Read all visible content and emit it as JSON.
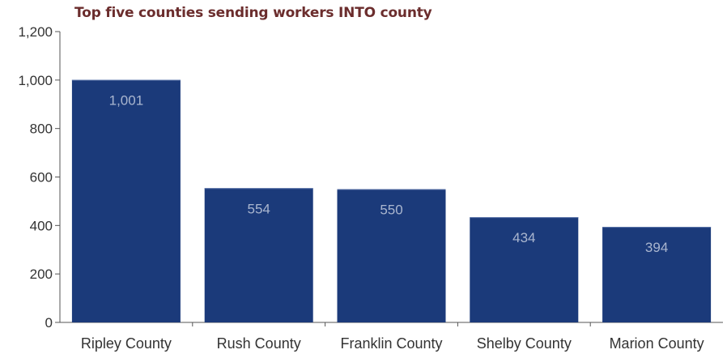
{
  "colors": {
    "bar": "#1b3a7a",
    "bar_label": "#aab6cf",
    "title": "#6b2d2d",
    "axis": "#555555",
    "text": "#333333"
  },
  "chart_data": {
    "type": "bar",
    "title": "Top five counties sending workers INTO county",
    "xlabel": "",
    "ylabel": "",
    "categories": [
      "Ripley County",
      "Rush County",
      "Franklin County",
      "Shelby County",
      "Marion County"
    ],
    "values": [
      1001,
      554,
      550,
      434,
      394
    ],
    "value_labels": [
      "1,001",
      "554",
      "550",
      "434",
      "394"
    ],
    "ylim": [
      0,
      1200
    ],
    "yticks": [
      0,
      200,
      400,
      600,
      800,
      1000,
      1200
    ],
    "ytick_labels": [
      "0",
      "200",
      "400",
      "600",
      "800",
      "1,000",
      "1,200"
    ],
    "grid": false,
    "legend": "none"
  }
}
